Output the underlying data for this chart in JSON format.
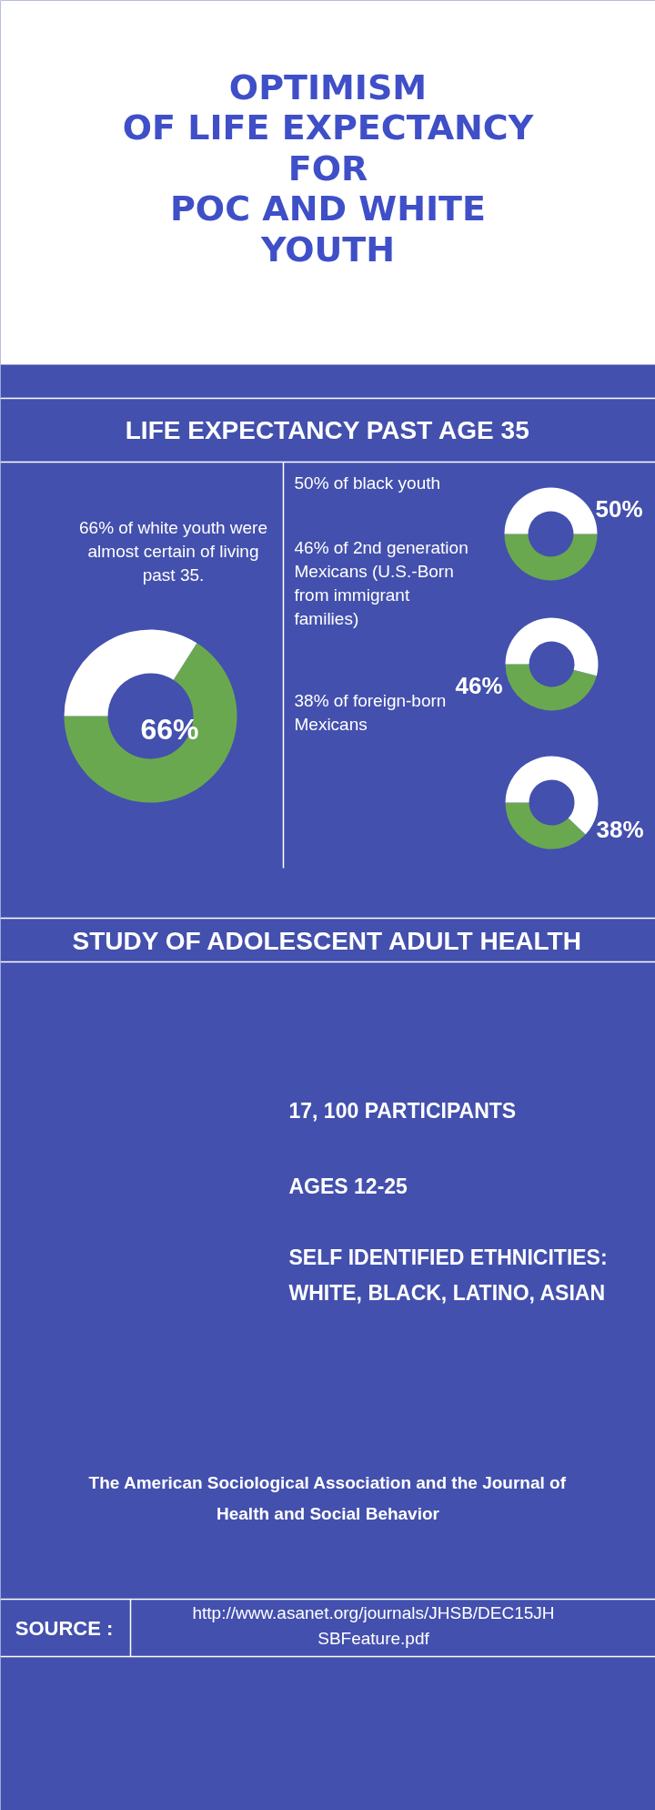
{
  "chart_data": [
    {
      "type": "other",
      "title": "OPTIMISM\nOF LIFE EXPECTANCY\nFOR\nPOC AND WHITE\nYOUTH",
      "subtitle": "LIFE EXPECTANCY PAST AGE 35"
    },
    {
      "type": "donut",
      "title": "66% of white youth were almost certain of living past 35.",
      "categories": [
        null,
        null
      ],
      "values": [
        66,
        34
      ],
      "colors": [
        "#6aa84f",
        "#ffffff"
      ],
      "value_labels": [
        "66%",
        null
      ]
    },
    {
      "type": "donut",
      "title": "50% of black youth",
      "categories": [
        null,
        null
      ],
      "values": [
        50,
        50
      ],
      "colors": [
        "#6aa84f",
        "#ffffff"
      ],
      "value_labels": [
        "50%",
        null
      ]
    },
    {
      "type": "donut",
      "title": "46% of 2nd generation Mexicans (U.S.-Born from immigrant families)",
      "categories": [
        null,
        null
      ],
      "values": [
        46,
        54
      ],
      "colors": [
        "#6aa84f",
        "#ffffff"
      ],
      "value_labels": [
        "46%",
        null
      ]
    },
    {
      "type": "donut",
      "title": "38% of foreign-born Mexicans",
      "categories": [
        null,
        null
      ],
      "values": [
        38,
        62
      ],
      "colors": [
        "#6aa84f",
        "#ffffff"
      ],
      "value_labels": [
        "38%",
        null
      ]
    },
    {
      "type": "other",
      "title": "STUDY OF ADOLESCENT ADULT HEALTH",
      "annotations": [
        "17, 100 PARTICIPANTS",
        "AGES 12-25",
        "SELF IDENTIFIED ETHNICITIES:\nWHITE, BLACK, LATINO, ASIAN",
        "The American Sociological Association and the Journal of Health and Social Behavior",
        "SOURCE :",
        "http://www.asanet.org/journals/JHSB/DEC15JHSBFeature.pdf"
      ]
    }
  ]
}
